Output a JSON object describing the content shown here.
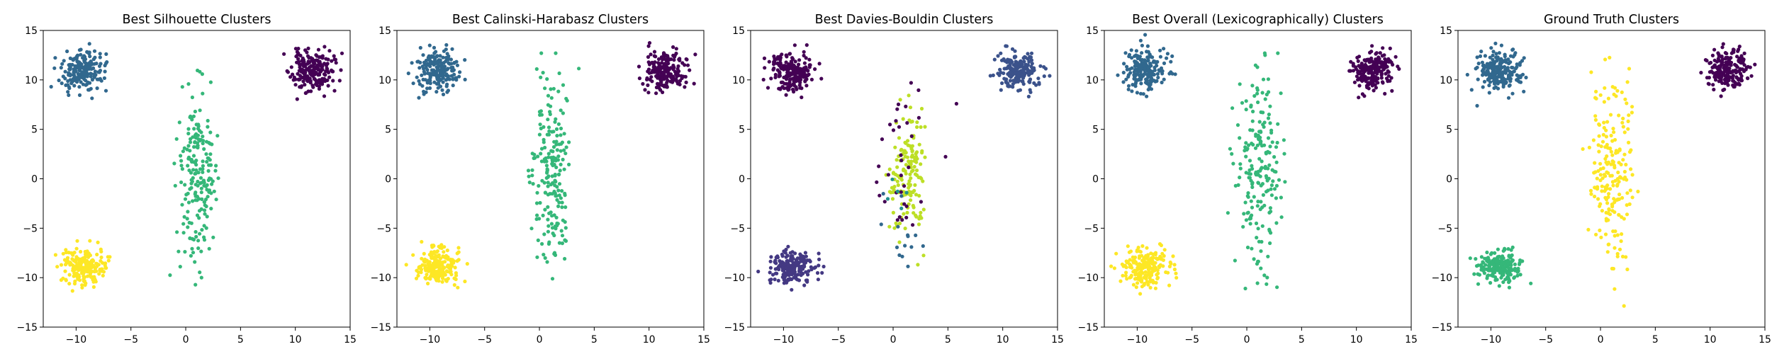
{
  "colors": {
    "c0": "#440154",
    "c1": "#31688e",
    "c2": "#35b779",
    "c3": "#fde725",
    "db0": "#440154",
    "db1": "#443983",
    "db2": "#3b528b",
    "db3": "#31688e",
    "db4": "#21918c",
    "db5": "#bddf26"
  },
  "chart_data": [
    {
      "type": "scatter",
      "title": "Best Silhouette Clusters",
      "xlim": [
        -13,
        15
      ],
      "ylim": [
        -15,
        15
      ],
      "xticks": [
        -10,
        -5,
        0,
        5,
        10,
        15
      ],
      "yticks": [
        -15,
        -10,
        -5,
        0,
        5,
        10,
        15
      ],
      "xtick_labels": [
        "−10",
        "−5",
        "0",
        "5",
        "10",
        "15"
      ],
      "ytick_labels": [
        "−15",
        "−10",
        "−5",
        "0",
        "5",
        "10",
        "15"
      ],
      "grid": false,
      "clusters": [
        {
          "shape": "blob",
          "cx": 11.5,
          "cy": 10.9,
          "sx": 0.95,
          "sy": 1.0,
          "n": 200,
          "color": "c0"
        },
        {
          "shape": "blob",
          "cx": -9.3,
          "cy": 10.9,
          "sx": 1.0,
          "sy": 1.05,
          "n": 200,
          "color": "c1"
        },
        {
          "shape": "strip",
          "cx": 1.1,
          "cy": 0.3,
          "sx": 0.95,
          "sy": 4.8,
          "n": 200,
          "color": "c2"
        },
        {
          "shape": "blob",
          "cx": -9.2,
          "cy": -8.9,
          "sx": 1.05,
          "sy": 0.9,
          "n": 200,
          "color": "c3"
        }
      ]
    },
    {
      "type": "scatter",
      "title": "Best Calinski-Harabasz Clusters",
      "xlim": [
        -13,
        15
      ],
      "ylim": [
        -15,
        15
      ],
      "xticks": [
        -10,
        -5,
        0,
        5,
        10,
        15
      ],
      "yticks": [
        -15,
        -10,
        -5,
        0,
        5,
        10,
        15
      ],
      "xtick_labels": [
        "−10",
        "−5",
        "0",
        "5",
        "10",
        "15"
      ],
      "ytick_labels": [
        "−15",
        "−10",
        "−5",
        "0",
        "5",
        "10",
        "15"
      ],
      "grid": false,
      "clusters": [
        {
          "shape": "blob",
          "cx": 11.5,
          "cy": 10.9,
          "sx": 0.95,
          "sy": 1.0,
          "n": 200,
          "color": "c0"
        },
        {
          "shape": "blob",
          "cx": -9.3,
          "cy": 10.9,
          "sx": 1.0,
          "sy": 1.05,
          "n": 200,
          "color": "c1"
        },
        {
          "shape": "strip",
          "cx": 1.1,
          "cy": 0.3,
          "sx": 0.95,
          "sy": 4.8,
          "n": 200,
          "color": "c2"
        },
        {
          "shape": "blob",
          "cx": -9.2,
          "cy": -8.9,
          "sx": 1.05,
          "sy": 0.9,
          "n": 200,
          "color": "c3"
        }
      ]
    },
    {
      "type": "scatter",
      "title": "Best Davies-Bouldin Clusters",
      "xlim": [
        -13,
        15
      ],
      "ylim": [
        -15,
        15
      ],
      "xticks": [
        -10,
        -5,
        0,
        5,
        10,
        15
      ],
      "yticks": [
        -15,
        -10,
        -5,
        0,
        5,
        10,
        15
      ],
      "xtick_labels": [
        "−10",
        "−5",
        "0",
        "5",
        "10",
        "15"
      ],
      "ytick_labels": [
        "−15",
        "−10",
        "−5",
        "0",
        "5",
        "10",
        "15"
      ],
      "grid": false,
      "clusters": [
        {
          "shape": "blob",
          "cx": -9.3,
          "cy": 10.9,
          "sx": 1.0,
          "sy": 1.05,
          "n": 200,
          "color": "db0"
        },
        {
          "shape": "blob",
          "cx": 11.5,
          "cy": 10.9,
          "sx": 0.95,
          "sy": 1.0,
          "n": 200,
          "color": "db2"
        },
        {
          "shape": "blob",
          "cx": -9.2,
          "cy": -8.9,
          "sx": 1.05,
          "sy": 0.9,
          "n": 200,
          "color": "db1"
        },
        {
          "shape": "strip",
          "cx": 1.4,
          "cy": 0.6,
          "sx": 0.75,
          "sy": 3.2,
          "n": 150,
          "color": "db5"
        },
        {
          "shape": "strip",
          "cx": 1.0,
          "cy": 0.5,
          "sx": 1.5,
          "sy": 4.6,
          "n": 35,
          "color": "db0"
        },
        {
          "shape": "strip",
          "cx": 1.0,
          "cy": -7.5,
          "sx": 1.0,
          "sy": 3.0,
          "n": 14,
          "color": "db3"
        },
        {
          "shape": "strip",
          "cx": 0.6,
          "cy": -1.5,
          "sx": 1.0,
          "sy": 2.5,
          "n": 5,
          "color": "db4"
        }
      ]
    },
    {
      "type": "scatter",
      "title": "Best Overall (Lexicographically) Clusters",
      "xlim": [
        -13,
        15
      ],
      "ylim": [
        -15,
        15
      ],
      "xticks": [
        -10,
        -5,
        0,
        5,
        10,
        15
      ],
      "yticks": [
        -15,
        -10,
        -5,
        0,
        5,
        10,
        15
      ],
      "xtick_labels": [
        "−10",
        "−5",
        "0",
        "5",
        "10",
        "15"
      ],
      "ytick_labels": [
        "−15",
        "−10",
        "−5",
        "0",
        "5",
        "10",
        "15"
      ],
      "grid": false,
      "clusters": [
        {
          "shape": "blob",
          "cx": 11.5,
          "cy": 10.9,
          "sx": 0.95,
          "sy": 1.0,
          "n": 200,
          "color": "c0"
        },
        {
          "shape": "blob",
          "cx": -9.3,
          "cy": 10.9,
          "sx": 1.0,
          "sy": 1.05,
          "n": 200,
          "color": "c1"
        },
        {
          "shape": "strip",
          "cx": 1.1,
          "cy": 0.3,
          "sx": 0.95,
          "sy": 4.8,
          "n": 200,
          "color": "c2"
        },
        {
          "shape": "blob",
          "cx": -9.2,
          "cy": -8.9,
          "sx": 1.05,
          "sy": 0.9,
          "n": 200,
          "color": "c3"
        }
      ]
    },
    {
      "type": "scatter",
      "title": "Ground Truth Clusters",
      "xlim": [
        -13,
        15
      ],
      "ylim": [
        -15,
        15
      ],
      "xticks": [
        -10,
        -5,
        0,
        5,
        10,
        15
      ],
      "yticks": [
        -15,
        -10,
        -5,
        0,
        5,
        10,
        15
      ],
      "xtick_labels": [
        "−10",
        "−5",
        "0",
        "5",
        "10",
        "15"
      ],
      "ytick_labels": [
        "−15",
        "−10",
        "−5",
        "0",
        "5",
        "10",
        "15"
      ],
      "grid": false,
      "clusters": [
        {
          "shape": "blob",
          "cx": 11.5,
          "cy": 10.9,
          "sx": 0.95,
          "sy": 1.0,
          "n": 200,
          "color": "c0"
        },
        {
          "shape": "blob",
          "cx": -9.3,
          "cy": 10.9,
          "sx": 1.0,
          "sy": 1.05,
          "n": 200,
          "color": "c1"
        },
        {
          "shape": "blob",
          "cx": -9.2,
          "cy": -8.9,
          "sx": 1.05,
          "sy": 0.9,
          "n": 200,
          "color": "c2"
        },
        {
          "shape": "strip",
          "cx": 1.1,
          "cy": 0.3,
          "sx": 0.95,
          "sy": 4.8,
          "n": 200,
          "color": "c3"
        }
      ]
    }
  ]
}
